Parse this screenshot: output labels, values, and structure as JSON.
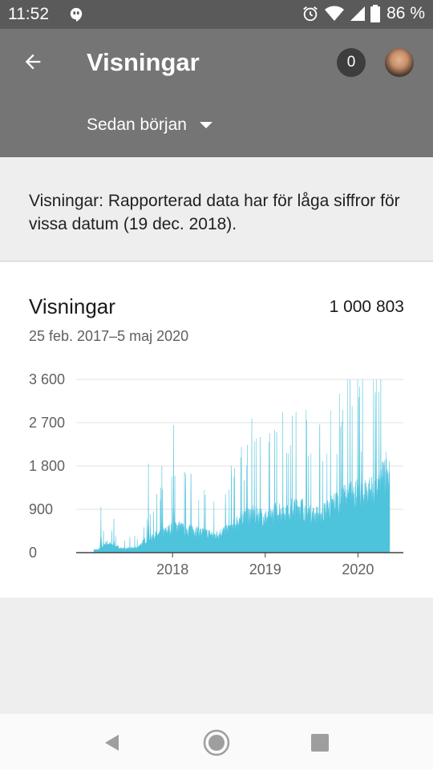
{
  "status_bar": {
    "time": "11:52",
    "battery_pct": "86 %"
  },
  "app_bar": {
    "title": "Visningar",
    "notification_count": "0",
    "period_label": "Sedan början"
  },
  "notice": {
    "text": "Visningar: Rapporterad data har för låga siffror för vissa datum (19 dec. 2018)."
  },
  "card": {
    "title": "Visningar",
    "total": "1 000 803",
    "date_range": "25 feb. 2017–5 maj 2020"
  },
  "chart_data": {
    "type": "area",
    "title": "Visningar",
    "xlabel": "",
    "ylabel": "",
    "y_ticks": [
      "3 600",
      "2 700",
      "1 800",
      "900",
      "0"
    ],
    "y_tick_values": [
      3600,
      2700,
      1800,
      900,
      0
    ],
    "x_ticks": [
      "2018",
      "2019",
      "2020"
    ],
    "ylim": [
      0,
      3600
    ],
    "xlim": [
      "2017-02-25",
      "2020-05-05"
    ],
    "grid": true,
    "color": "#4dc3dc",
    "monthly_typical": [
      {
        "x": "2017-03",
        "y": 60
      },
      {
        "x": "2017-04",
        "y": 200
      },
      {
        "x": "2017-05",
        "y": 150
      },
      {
        "x": "2017-06",
        "y": 80
      },
      {
        "x": "2017-07",
        "y": 90
      },
      {
        "x": "2017-08",
        "y": 100
      },
      {
        "x": "2017-09",
        "y": 250
      },
      {
        "x": "2017-10",
        "y": 350
      },
      {
        "x": "2017-11",
        "y": 380
      },
      {
        "x": "2017-12",
        "y": 450
      },
      {
        "x": "2018-01",
        "y": 550
      },
      {
        "x": "2018-02",
        "y": 480
      },
      {
        "x": "2018-03",
        "y": 500
      },
      {
        "x": "2018-04",
        "y": 420
      },
      {
        "x": "2018-05",
        "y": 400
      },
      {
        "x": "2018-06",
        "y": 350
      },
      {
        "x": "2018-07",
        "y": 420
      },
      {
        "x": "2018-08",
        "y": 500
      },
      {
        "x": "2018-09",
        "y": 650
      },
      {
        "x": "2018-10",
        "y": 750
      },
      {
        "x": "2018-11",
        "y": 800
      },
      {
        "x": "2018-12",
        "y": 750
      },
      {
        "x": "2019-01",
        "y": 700
      },
      {
        "x": "2019-02",
        "y": 850
      },
      {
        "x": "2019-03",
        "y": 850
      },
      {
        "x": "2019-04",
        "y": 900
      },
      {
        "x": "2019-05",
        "y": 950
      },
      {
        "x": "2019-06",
        "y": 850
      },
      {
        "x": "2019-07",
        "y": 750
      },
      {
        "x": "2019-08",
        "y": 800
      },
      {
        "x": "2019-09",
        "y": 950
      },
      {
        "x": "2019-10",
        "y": 1050
      },
      {
        "x": "2019-11",
        "y": 1150
      },
      {
        "x": "2019-12",
        "y": 1250
      },
      {
        "x": "2020-01",
        "y": 1200
      },
      {
        "x": "2020-02",
        "y": 1250
      },
      {
        "x": "2020-03",
        "y": 1300
      },
      {
        "x": "2020-04",
        "y": 1600
      }
    ],
    "peaks": [
      {
        "x": "2017-03-25",
        "y": 950
      },
      {
        "x": "2017-05-15",
        "y": 700
      },
      {
        "x": "2017-09-28",
        "y": 1850
      },
      {
        "x": "2017-11-20",
        "y": 1800
      },
      {
        "x": "2018-01-05",
        "y": 2650
      },
      {
        "x": "2018-05-10",
        "y": 1200
      },
      {
        "x": "2018-08-20",
        "y": 1600
      },
      {
        "x": "2018-10-10",
        "y": 1500
      },
      {
        "x": "2018-12-12",
        "y": 2400
      },
      {
        "x": "2019-02-15",
        "y": 2500
      },
      {
        "x": "2019-04-10",
        "y": 1800
      },
      {
        "x": "2019-06-20",
        "y": 2000
      },
      {
        "x": "2019-08-15",
        "y": 1900
      },
      {
        "x": "2019-10-10",
        "y": 2050
      },
      {
        "x": "2019-12-01",
        "y": 3200
      },
      {
        "x": "2020-01-15",
        "y": 2100
      },
      {
        "x": "2020-03-10",
        "y": 2300
      },
      {
        "x": "2020-04-20",
        "y": 2100
      }
    ]
  }
}
